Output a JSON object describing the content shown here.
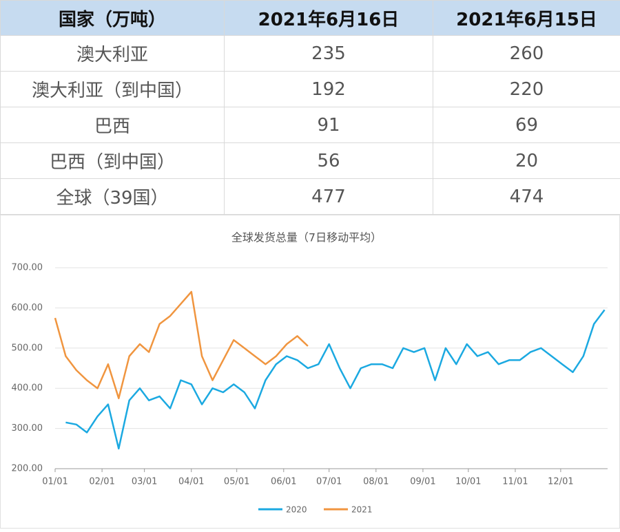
{
  "table": {
    "header": [
      "国家（万吨）",
      "2021年6月16日",
      "2021年6月15日"
    ],
    "rows": [
      [
        "澳大利亚",
        "235",
        "260"
      ],
      [
        "澳大利亚（到中国）",
        "192",
        "220"
      ],
      [
        "巴西",
        "91",
        "69"
      ],
      [
        "巴西（到中国）",
        "56",
        "20"
      ],
      [
        "全球（39国）",
        "477",
        "474"
      ]
    ]
  },
  "chart_data": {
    "type": "line",
    "title": "全球发货总量（7日移动平均）",
    "x": [
      "01/01",
      "01/08",
      "01/15",
      "01/22",
      "01/29",
      "02/05",
      "02/12",
      "02/19",
      "02/26",
      "03/04",
      "03/11",
      "03/18",
      "03/25",
      "04/01",
      "04/08",
      "04/15",
      "04/22",
      "04/29",
      "05/06",
      "05/13",
      "05/20",
      "05/27",
      "06/03",
      "06/10",
      "06/17",
      "06/24",
      "07/01",
      "07/08",
      "07/15",
      "07/22",
      "07/29",
      "08/05",
      "08/12",
      "08/19",
      "08/26",
      "09/02",
      "09/09",
      "09/16",
      "09/23",
      "09/30",
      "10/07",
      "10/14",
      "10/21",
      "10/28",
      "11/04",
      "11/11",
      "11/18",
      "11/25",
      "12/02",
      "12/09",
      "12/16",
      "12/23",
      "12/30"
    ],
    "series": [
      {
        "name": "2020",
        "color": "#1ba9e1",
        "values": [
          null,
          315,
          310,
          290,
          330,
          360,
          250,
          370,
          400,
          370,
          380,
          350,
          420,
          410,
          360,
          400,
          390,
          410,
          390,
          350,
          420,
          460,
          480,
          470,
          450,
          460,
          510,
          450,
          400,
          450,
          460,
          460,
          450,
          500,
          490,
          500,
          420,
          500,
          460,
          510,
          480,
          490,
          460,
          470,
          470,
          490,
          500,
          480,
          460,
          440,
          480,
          560,
          595
        ]
      },
      {
        "name": "2021",
        "color": "#f0953f",
        "values": [
          575,
          480,
          445,
          420,
          400,
          460,
          375,
          480,
          510,
          490,
          560,
          580,
          610,
          640,
          480,
          420,
          470,
          520,
          500,
          480,
          460,
          480,
          510,
          530,
          505,
          null,
          null,
          null,
          null,
          null,
          null,
          null,
          null,
          null,
          null,
          null,
          null,
          null,
          null,
          null,
          null,
          null,
          null,
          null,
          null,
          null,
          null,
          null,
          null,
          null,
          null,
          null,
          null
        ]
      }
    ],
    "ylim": [
      200,
      700
    ],
    "yticks": [
      {
        "value": 200,
        "label": "200.00"
      },
      {
        "value": 300,
        "label": "300.00"
      },
      {
        "value": 400,
        "label": "400.00"
      },
      {
        "value": 500,
        "label": "500.00"
      },
      {
        "value": 600,
        "label": "600.00"
      },
      {
        "value": 700,
        "label": "700.00"
      }
    ],
    "xticks": [
      "01/01",
      "02/01",
      "03/01",
      "04/01",
      "05/01",
      "06/01",
      "07/01",
      "08/01",
      "09/01",
      "10/01",
      "11/01",
      "12/01"
    ],
    "grid": true
  }
}
